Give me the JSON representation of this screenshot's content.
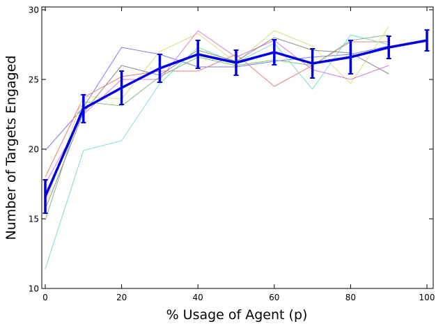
{
  "chart_data": {
    "type": "line",
    "title": "",
    "xlabel": "% Usage of Agent (p)",
    "ylabel": "Number of Targets Engaged",
    "xlim": [
      0,
      100
    ],
    "ylim": [
      10,
      30
    ],
    "xticks": [
      0,
      20,
      40,
      60,
      80,
      100
    ],
    "yticks": [
      10,
      15,
      20,
      25,
      30
    ],
    "xtick_labels": [
      "0",
      "20",
      "40",
      "60",
      "80",
      "100"
    ],
    "ytick_labels": [
      "10",
      "15",
      "20",
      "25",
      "30"
    ],
    "grid": false,
    "legend": "none",
    "x": [
      0,
      10,
      20,
      30,
      40,
      50,
      60,
      70,
      80,
      90
    ],
    "series": [
      {
        "color": "#7b7bf2",
        "values": [
          19.9,
          23.0,
          27.3,
          26.8,
          25.9,
          25.9,
          26.3,
          26.6,
          26.8,
          27.4
        ]
      },
      {
        "color": "#f27b7b",
        "values": [
          18.0,
          23.7,
          25.2,
          25.6,
          25.6,
          26.8,
          24.5,
          26.0,
          27.7,
          27.7
        ]
      },
      {
        "color": "#7bdcdc",
        "values": [
          11.4,
          19.9,
          20.6,
          24.7,
          27.3,
          26.2,
          27.6,
          24.3,
          28.2,
          27.5
        ]
      },
      {
        "color": "#7bbf7b",
        "values": [
          14.9,
          23.4,
          23.1,
          25.2,
          26.6,
          26.0,
          26.4,
          26.0,
          27.8,
          28.2
        ]
      },
      {
        "color": "#dcdc7b",
        "values": [
          16.0,
          23.8,
          23.6,
          27.0,
          28.3,
          26.2,
          28.5,
          27.4,
          24.7,
          28.8
        ]
      },
      {
        "color": "#dc7bdc",
        "values": [
          17.5,
          22.5,
          25.0,
          25.0,
          28.5,
          26.6,
          27.8,
          25.7,
          25.0,
          26.0
        ]
      },
      {
        "color": "#8c8c8c",
        "values": [
          15.7,
          22.6,
          26.0,
          25.3,
          27.1,
          26.3,
          28.0,
          27.1,
          26.9,
          25.4
        ]
      }
    ],
    "mean": {
      "color": "#0000e6",
      "x": [
        0,
        10,
        20,
        30,
        40,
        50,
        60,
        70,
        80,
        90,
        100
      ],
      "values": [
        16.6,
        22.9,
        24.4,
        25.8,
        26.8,
        26.2,
        26.95,
        26.15,
        26.6,
        27.3,
        27.8
      ],
      "err": [
        1.2,
        1.0,
        1.2,
        1.0,
        1.0,
        0.9,
        0.9,
        1.05,
        1.2,
        0.8,
        0.75
      ]
    }
  }
}
